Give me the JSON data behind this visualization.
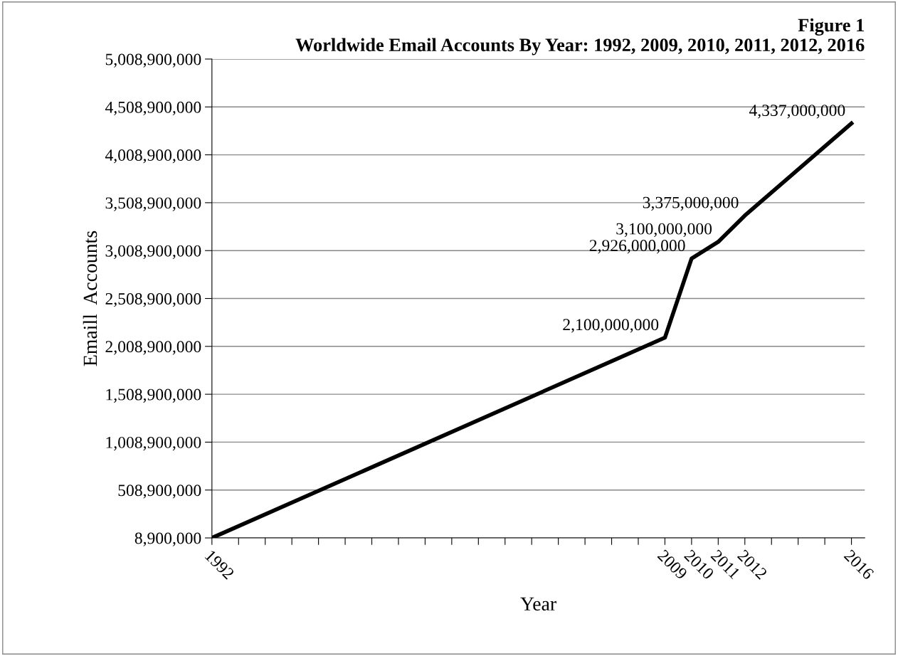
{
  "chart_data": {
    "type": "line",
    "title": "Figure 1\nWorldwide Email Accounts By Year: 1992, 2009, 2010, 2011, 2012, 2016",
    "xlabel": "Year",
    "ylabel": "Emaill  Accounts",
    "x": [
      1992,
      2009,
      2010,
      2011,
      2012,
      2016
    ],
    "series": [
      {
        "color": "#000000",
        "values": [
          8900000,
          2100000000,
          2926000000,
          3100000000,
          3375000000,
          4337000000
        ],
        "value_labels": [
          null,
          "2,100,000,000",
          "2,926,000,000",
          "3,100,000,000",
          "3,375,000,000",
          "4,337,000,000"
        ]
      }
    ],
    "xlim": [
      1992,
      2016.5
    ],
    "xticks": [
      1992,
      {
        "value": 1993,
        "label": null
      },
      {
        "value": 1994,
        "label": null
      },
      {
        "value": 1995,
        "label": null
      },
      {
        "value": 1996,
        "label": null
      },
      {
        "value": 1997,
        "label": null
      },
      {
        "value": 1998,
        "label": null
      },
      {
        "value": 1999,
        "label": null
      },
      {
        "value": 2000,
        "label": null
      },
      {
        "value": 2001,
        "label": null
      },
      {
        "value": 2002,
        "label": null
      },
      {
        "value": 2003,
        "label": null
      },
      {
        "value": 2004,
        "label": null
      },
      {
        "value": 2005,
        "label": null
      },
      {
        "value": 2006,
        "label": null
      },
      {
        "value": 2007,
        "label": null
      },
      {
        "value": 2008,
        "label": null
      },
      2009,
      2010,
      2011,
      2012,
      {
        "value": 2013,
        "label": null
      },
      {
        "value": 2014,
        "label": null
      },
      {
        "value": 2015,
        "label": null
      },
      2016
    ],
    "ylim": [
      8900000,
      5008900000
    ],
    "yticks": [
      {
        "value": 8900000,
        "label": "8,900,000"
      },
      {
        "value": 508900000,
        "label": "508,900,000"
      },
      {
        "value": 1008900000,
        "label": "1,008,900,000"
      },
      {
        "value": 1508900000,
        "label": "1,508,900,000"
      },
      {
        "value": 2008900000,
        "label": "2,008,900,000"
      },
      {
        "value": 2508900000,
        "label": "2,508,900,000"
      },
      {
        "value": 3008900000,
        "label": "3,008,900,000"
      },
      {
        "value": 3508900000,
        "label": "3,508,900,000"
      },
      {
        "value": 4008900000,
        "label": "4,008,900,000"
      },
      {
        "value": 4508900000,
        "label": "4,508,900,000"
      },
      {
        "value": 5008900000,
        "label": "5,008,900,000"
      }
    ],
    "grid": "y",
    "marker": "none",
    "line_style": "solid",
    "legend": false
  }
}
